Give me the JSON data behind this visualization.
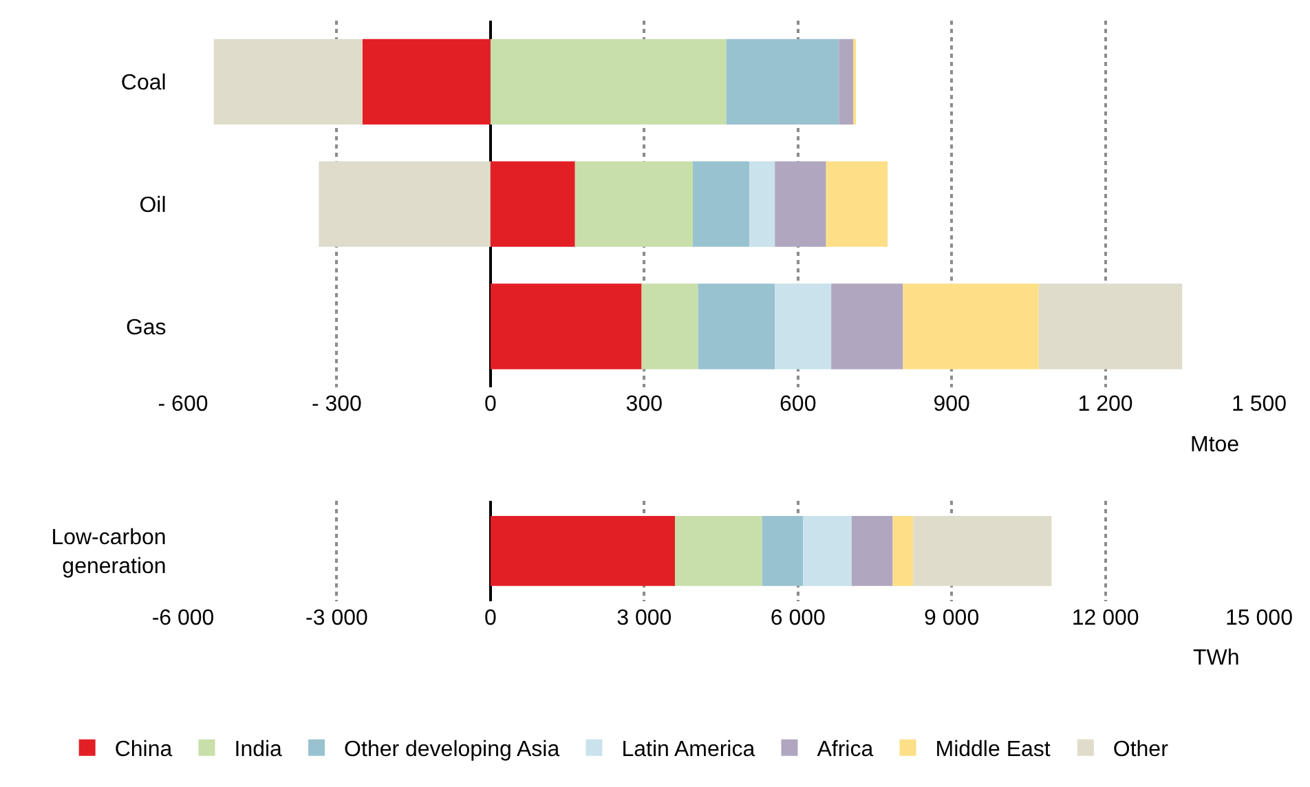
{
  "chart_data": [
    {
      "type": "bar",
      "orientation": "horizontal",
      "stacked": true,
      "categories": [
        "Coal",
        "Oil",
        "Gas"
      ],
      "xlabel": "Mtoe",
      "xlim": [
        -600,
        1500
      ],
      "xticks": [
        {
          "value": -600,
          "label": "- 600"
        },
        {
          "value": -300,
          "label": "- 300"
        },
        0,
        300,
        600,
        900,
        {
          "value": 1200,
          "label": "1 200"
        },
        {
          "value": 1500,
          "label": "1 500"
        }
      ],
      "grid": "x",
      "series": [
        {
          "color": "#e31f26",
          "values": [
            -250,
            165,
            295
          ]
        },
        {
          "color": "#c8dfaa",
          "values": [
            460,
            230,
            110
          ]
        },
        {
          "color": "#98c2cf",
          "values": [
            220,
            110,
            150
          ]
        },
        {
          "color": "#c9e2ec",
          "values": [
            0,
            50,
            110
          ]
        },
        {
          "color": "#b0a6c0",
          "values": [
            30,
            100,
            140
          ]
        },
        {
          "color": "#fddf87",
          "values": [
            3,
            120,
            265
          ]
        },
        {
          "color": "#dfdccb",
          "values": [
            -290,
            -335,
            280
          ]
        }
      ]
    },
    {
      "type": "bar",
      "orientation": "horizontal",
      "stacked": true,
      "categories": [
        "Low-carbon generation"
      ],
      "xlabel": "TWh",
      "xlim": [
        -6000,
        15000
      ],
      "xticks": [
        {
          "value": -6000,
          "label": "-6 000"
        },
        {
          "value": -3000,
          "label": "-3 000"
        },
        0,
        {
          "value": 3000,
          "label": "3 000"
        },
        {
          "value": 6000,
          "label": "6 000"
        },
        {
          "value": 9000,
          "label": "9 000"
        },
        {
          "value": 12000,
          "label": "12 000"
        },
        {
          "value": 15000,
          "label": "15 000"
        }
      ],
      "grid": "x",
      "legend": "bottom",
      "series": [
        {
          "name": "China",
          "color": "#e31f26",
          "values": [
            3600
          ]
        },
        {
          "name": "India",
          "color": "#c8dfaa",
          "values": [
            1700
          ]
        },
        {
          "name": "Other developing Asia",
          "color": "#98c2cf",
          "values": [
            800
          ]
        },
        {
          "name": "Latin America",
          "color": "#c9e2ec",
          "values": [
            950
          ]
        },
        {
          "name": "Africa",
          "color": "#b0a6c0",
          "values": [
            800
          ]
        },
        {
          "name": "Middle East",
          "color": "#fddf87",
          "values": [
            400
          ]
        },
        {
          "name": "Other",
          "color": "#dfdccb",
          "values": [
            2700
          ]
        }
      ]
    }
  ]
}
